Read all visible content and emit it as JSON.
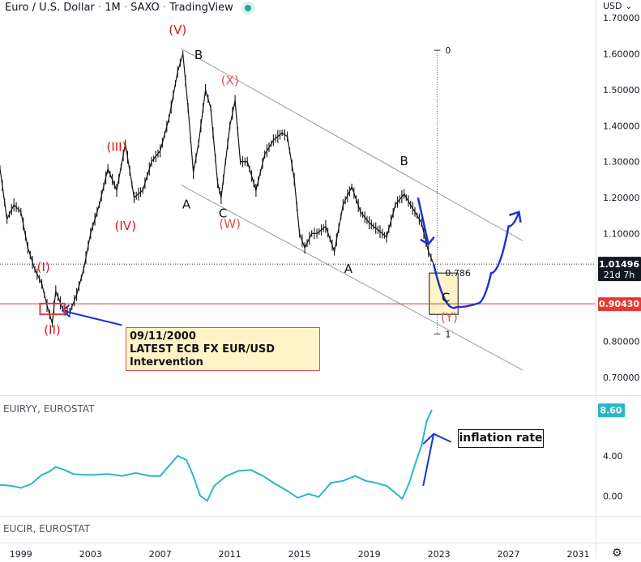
{
  "header": {
    "title_parts": [
      "Euro / U.S. Dollar",
      "1M",
      "SAXO",
      "TradingView"
    ],
    "currency_menu": "USD ⌄"
  },
  "colors": {
    "price_line": "#151515",
    "inflation_line": "#26b8c9",
    "channel": "#9a9a9a",
    "wave_label_red": "#d9161a",
    "wave_label_pink": "#e0524e",
    "support_line": "#e53935",
    "arrow_blue": "#1d33d8",
    "price_badge": "#131722",
    "support_badge": "#e53935",
    "inflation_badge": "#26b8c9",
    "note_fill": "#fff3c8"
  },
  "chart_data": [
    {
      "type": "line",
      "name": "main-price-chart",
      "y_axis_ticks": [
        "1.70000",
        "1.60000",
        "1.50000",
        "1.40000",
        "1.30000",
        "1.20000",
        "1.10000",
        "1.00000",
        "0.90000",
        "0.80000",
        "0.70000"
      ],
      "ylim": [
        0.65,
        1.75
      ],
      "x_axis_ticks": [
        "1999",
        "2003",
        "2007",
        "2011",
        "2015",
        "2019",
        "2023",
        "2027",
        "2031"
      ],
      "xlim": [
        1997.8,
        2032.0
      ],
      "grid": false,
      "series": [
        {
          "x": [
            1997.8,
            1998.2,
            1998.6,
            1999.0,
            1999.4,
            1999.8,
            2000.2,
            2000.5,
            2000.8,
            2001.0,
            2001.4,
            2001.8,
            2002.2,
            2002.6,
            2003.0,
            2003.5,
            2004.0,
            2004.5,
            2005.0,
            2005.5,
            2006.0,
            2006.5,
            2007.0,
            2007.5,
            2008.0,
            2008.3,
            2008.6,
            2008.9,
            2009.2,
            2009.6,
            2009.9,
            2010.3,
            2010.5,
            2011.0,
            2011.3,
            2011.6,
            2012.0,
            2012.5,
            2013.0,
            2013.5,
            2014.0,
            2014.3,
            2014.7,
            2015.0,
            2015.3,
            2015.7,
            2016.0,
            2016.5,
            2017.0,
            2017.5,
            2018.0,
            2018.5,
            2019.0,
            2019.5,
            2020.0,
            2020.5,
            2021.0,
            2021.5,
            2022.0,
            2022.4,
            2022.7
          ],
          "values": [
            1.28,
            1.14,
            1.18,
            1.16,
            1.06,
            1.0,
            0.96,
            0.9,
            0.85,
            0.94,
            0.89,
            0.88,
            0.93,
            1.0,
            1.1,
            1.18,
            1.28,
            1.22,
            1.35,
            1.2,
            1.22,
            1.3,
            1.33,
            1.42,
            1.55,
            1.6,
            1.45,
            1.27,
            1.35,
            1.5,
            1.45,
            1.24,
            1.2,
            1.4,
            1.47,
            1.3,
            1.3,
            1.22,
            1.32,
            1.36,
            1.38,
            1.37,
            1.25,
            1.1,
            1.06,
            1.1,
            1.1,
            1.12,
            1.05,
            1.18,
            1.23,
            1.16,
            1.13,
            1.11,
            1.09,
            1.18,
            1.21,
            1.17,
            1.13,
            1.05,
            1.015
          ]
        }
      ],
      "projection": {
        "x": [
          2022.7,
          2024.0,
          2025.2,
          2026.0,
          2027.0,
          2027.6
        ],
        "values": [
          1.015,
          0.895,
          0.905,
          0.99,
          1.12,
          1.16
        ]
      },
      "annotations": {
        "wave_labels": [
          {
            "text": "(I)",
            "x": 2000.3,
            "y": 0.995,
            "color": "red"
          },
          {
            "text": "(II)",
            "x": 2000.8,
            "y": 0.82,
            "color": "red"
          },
          {
            "text": "(III)",
            "x": 2004.5,
            "y": 1.33,
            "color": "red"
          },
          {
            "text": "(IV)",
            "x": 2005.0,
            "y": 1.11,
            "color": "red"
          },
          {
            "text": "(V)",
            "x": 2008.0,
            "y": 1.655,
            "color": "red"
          },
          {
            "text": "(X)",
            "x": 2011.0,
            "y": 1.515,
            "color": "pink"
          },
          {
            "text": "(W)",
            "x": 2011.0,
            "y": 1.115,
            "color": "pink"
          },
          {
            "text": "(Y)",
            "x": 2023.6,
            "y": 0.855,
            "color": "pink"
          },
          {
            "text": "A",
            "x": 2008.5,
            "y": 1.17,
            "color": "black"
          },
          {
            "text": "B",
            "x": 2009.2,
            "y": 1.585,
            "color": "black"
          },
          {
            "text": "C",
            "x": 2010.6,
            "y": 1.145,
            "color": "black"
          },
          {
            "text": "A",
            "x": 2017.8,
            "y": 0.99,
            "color": "black"
          },
          {
            "text": "B",
            "x": 2021.0,
            "y": 1.29,
            "color": "black"
          },
          {
            "text": "C",
            "x": 2023.4,
            "y": 0.91,
            "color": "black"
          }
        ],
        "fib_levels": [
          {
            "text": "0",
            "y": 1.61
          },
          {
            "text": "0.786",
            "y": 0.99
          },
          {
            "text": "1",
            "y": 0.82
          }
        ],
        "current_price": {
          "value": "1.01496",
          "countdown": "21d 7h"
        },
        "support_level": {
          "value": "0.90430"
        }
      }
    },
    {
      "type": "line",
      "name": "inflation-subchart",
      "title": "EUIRYY, EUROSTAT",
      "y_axis_ticks": [
        "4.00",
        "0.00"
      ],
      "ylim": [
        -2.0,
        10.0
      ],
      "series": [
        {
          "x": [
            1997.8,
            1998.5,
            1999.0,
            1999.6,
            2000.2,
            2000.6,
            2001.0,
            2001.5,
            2002.0,
            2002.6,
            2003.2,
            2004.0,
            2004.8,
            2005.6,
            2006.4,
            2007.0,
            2007.5,
            2008.0,
            2008.5,
            2008.9,
            2009.3,
            2009.7,
            2010.1,
            2010.8,
            2011.5,
            2012.2,
            2012.9,
            2013.6,
            2014.3,
            2014.9,
            2015.5,
            2016.1,
            2016.8,
            2017.5,
            2018.2,
            2018.8,
            2019.4,
            2020.0,
            2020.5,
            2020.9,
            2021.3,
            2021.7,
            2022.0,
            2022.3,
            2022.6
          ],
          "values": [
            1.1,
            1.0,
            0.8,
            1.2,
            2.1,
            2.4,
            2.9,
            2.6,
            2.2,
            2.1,
            2.1,
            2.2,
            2.0,
            2.3,
            2.0,
            2.0,
            3.0,
            4.0,
            3.6,
            2.0,
            0.0,
            -0.5,
            1.0,
            2.0,
            2.5,
            2.6,
            2.0,
            1.2,
            0.5,
            -0.2,
            0.2,
            -0.1,
            1.3,
            1.5,
            2.0,
            1.5,
            1.3,
            1.0,
            0.3,
            -0.3,
            1.3,
            3.5,
            5.0,
            7.5,
            8.6
          ]
        }
      ],
      "current_value": "8.60",
      "annotation": "inflation rate"
    },
    {
      "type": "line",
      "name": "interest-rate-subchart",
      "title": "EUCIR, EUROSTAT",
      "series": []
    }
  ],
  "note": {
    "line1": "09/11/2000",
    "line2": "LATEST ECB FX EUR/USD",
    "line3": "Intervention"
  }
}
